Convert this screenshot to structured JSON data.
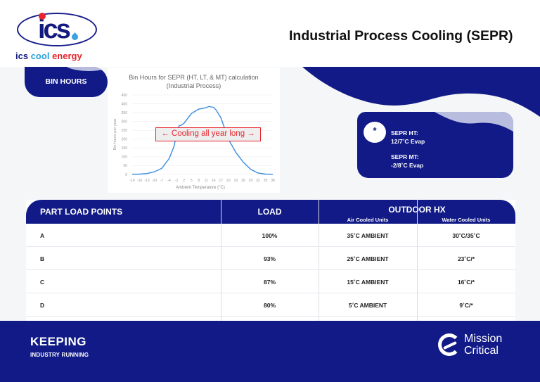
{
  "header": {
    "logo_mark": "ics",
    "logo_words": [
      "ics",
      "cool",
      "energy"
    ],
    "title": "Industrial Process Cooling (SEPR)"
  },
  "bin_hours": {
    "label": "BIN HOURS"
  },
  "chart": {
    "title_line1": "Bin Hours for SEPR (HT, LT, & MT) calculation",
    "title_line2": "(Industrial Process)",
    "annotation": "← Cooling all year long →",
    "ylabel": "Bin hours per year",
    "xlabel": "Ambient Temperature (°C)",
    "yticks": [
      "0",
      "50",
      "100",
      "150",
      "200",
      "250",
      "300",
      "350",
      "400",
      "450"
    ],
    "xticks": [
      "-19",
      "-16",
      "-13",
      "-10",
      "-7",
      "-4",
      "-1",
      "2",
      "5",
      "8",
      "11",
      "14",
      "17",
      "20",
      "23",
      "26",
      "29",
      "32",
      "35",
      "38"
    ],
    "line_color": "#3a8de0",
    "annotation_color": "#e5262e"
  },
  "chart_data": {
    "type": "line",
    "title": "Bin Hours for SEPR (HT, LT, & MT) calculation (Industrial Process)",
    "xlabel": "Ambient Temperature (°C)",
    "ylabel": "Bin hours per year",
    "ylim": [
      0,
      450
    ],
    "xlim": [
      -19,
      38
    ],
    "grid": true,
    "legend": "none",
    "annotations": [
      "← Cooling all year long →"
    ],
    "x": [
      -19,
      -16,
      -13,
      -10,
      -7,
      -4,
      -2,
      -1,
      0,
      1,
      2,
      5,
      8,
      11,
      12,
      14,
      15,
      17,
      20,
      23,
      26,
      29,
      32,
      35,
      38
    ],
    "series": [
      {
        "name": "Bin hours",
        "values": [
          1,
          2,
          5,
          15,
          35,
          90,
          160,
          230,
          275,
          280,
          290,
          345,
          370,
          378,
          385,
          380,
          365,
          320,
          200,
          125,
          70,
          30,
          8,
          2,
          1
        ]
      }
    ]
  },
  "sepr": {
    "icon": "*",
    "ht_label": "SEPR HT:",
    "ht_value": "12/7˚C Evap",
    "mt_label": "SEPR MT:",
    "mt_value": "-2/8˚C Evap"
  },
  "table": {
    "headers": {
      "col1": "PART LOAD POINTS",
      "col2": "LOAD",
      "group": "OUTDOOR HX",
      "sub1": "Air Cooled Units",
      "sub2": "Water Cooled Units"
    },
    "rows": [
      {
        "point": "A",
        "load": "100%",
        "air": "35˚C AMBIENT",
        "water": "30˚C/35˚C"
      },
      {
        "point": "B",
        "load": "93%",
        "air": "25˚C AMBIENT",
        "water": "23˚C/*"
      },
      {
        "point": "C",
        "load": "87%",
        "air": "15˚C AMBIENT",
        "water": "16˚C/*"
      },
      {
        "point": "D",
        "load": "80%",
        "air": "5˚C AMBIENT",
        "water": "9˚C/*"
      }
    ]
  },
  "footer": {
    "keeping": "KEEPING",
    "industry": "INDUSTRY RUNNING",
    "mission": "Mission",
    "critical": "Critical"
  },
  "colors": {
    "navy": "#111a86",
    "lavender": "#b8bde0",
    "red": "#e5262e",
    "blue": "#2a9fdc",
    "background": "#f4f6f7"
  }
}
